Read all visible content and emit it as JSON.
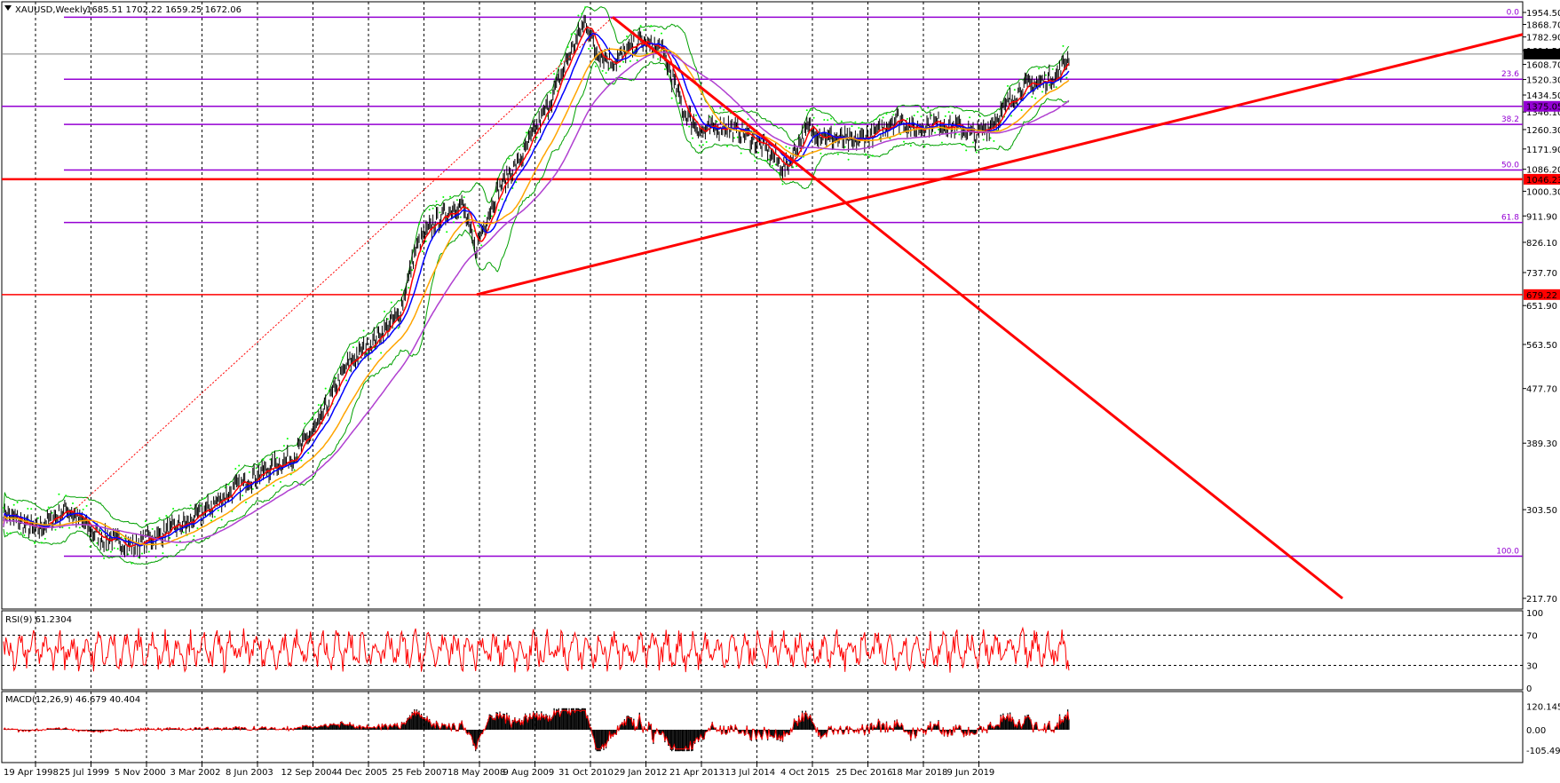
{
  "header": {
    "symbol": "XAUUSD,Weekly",
    "ohlc": "1685.51 1702.22 1659.25 1672.06"
  },
  "colors": {
    "price_bar": "#000000",
    "bollinger": "#00a000",
    "parabolic_sar": "#00ff00",
    "ma_fast": "#ff0000",
    "ma_mid": "#0000ff",
    "ma_slow": "#ffa500",
    "ma_long": "#b040d0",
    "trendline": "#ff0000",
    "fibonacci": "#9400d3",
    "rsi": "#ff0000",
    "macd_hist": "#000000",
    "macd_signal": "#ff0000",
    "grid": "#000000",
    "current_price_bg": "#000000"
  },
  "price_axis": {
    "ticks": [
      "1954.50",
      "1868.70",
      "1782.90",
      "1694.50",
      "1608.70",
      "1520.30",
      "1434.50",
      "1346.10",
      "1260.30",
      "1171.90",
      "1086.20",
      "1000.30",
      "911.90",
      "826.10",
      "737.70",
      "651.90",
      "563.50",
      "477.70",
      "389.30",
      "303.50",
      "217.70"
    ],
    "current_price": "1672.06",
    "marked_levels": [
      {
        "label": "1375.05",
        "color": "#9400d3"
      },
      {
        "label": "1046.23",
        "color": "#ff0000"
      },
      {
        "label": "679.22",
        "color": "#ff0000"
      }
    ]
  },
  "fibonacci": {
    "levels": [
      {
        "label": "0.0",
        "value": 1920
      },
      {
        "label": "23.6",
        "value": 1522
      },
      {
        "label": "38.2",
        "value": 1285
      },
      {
        "label": "50.0",
        "value": 1083
      },
      {
        "label": "61.8",
        "value": 890
      },
      {
        "label": "100.0",
        "value": 255
      }
    ]
  },
  "time_axis": {
    "labels": [
      "19 Apr 1998",
      "25 Jul 1999",
      "5 Nov 2000",
      "3 Mar 2002",
      "8 Jun 2003",
      "12 Sep 2004",
      "4 Dec 2005",
      "25 Feb 2007",
      "18 May 2008",
      "9 Aug 2009",
      "31 Oct 2010",
      "29 Jan 2012",
      "21 Apr 2013",
      "13 Jul 2014",
      "4 Oct 2015",
      "25 Dec 2016",
      "18 Mar 2018",
      "9 Jun 2019"
    ]
  },
  "rsi": {
    "label": "RSI(9) 61.2304",
    "ticks": [
      "100",
      "70",
      "30",
      "0"
    ]
  },
  "macd": {
    "label": "MACD(12,26,9) 46.679 40.404",
    "ticks": [
      "120.145",
      "0.00",
      "-105.495"
    ]
  },
  "chart_data": {
    "type": "line",
    "title": "XAUUSD,Weekly",
    "series": [
      {
        "name": "XAUUSD",
        "x": [
          "1998-04",
          "1999-07",
          "2000-11",
          "2002-03",
          "2003-06",
          "2004-09",
          "2005-12",
          "2007-02",
          "2008-03",
          "2008-10",
          "2009-08",
          "2010-10",
          "2011-09",
          "2012-01",
          "2012-10",
          "2013-06",
          "2013-10",
          "2014-07",
          "2015-01",
          "2015-12",
          "2016-07",
          "2016-12",
          "2017-09",
          "2018-08",
          "2019-06",
          "2019-09",
          "2019-12",
          "2020-02"
        ],
        "values": [
          300,
          270,
          265,
          300,
          350,
          410,
          520,
          650,
          960,
          730,
          950,
          1350,
          1900,
          1600,
          1780,
          1200,
          1300,
          1290,
          1280,
          1050,
          1360,
          1130,
          1340,
          1180,
          1400,
          1550,
          1470,
          1672
        ]
      }
    ],
    "ylim": [
      217.7,
      1954.5
    ]
  }
}
